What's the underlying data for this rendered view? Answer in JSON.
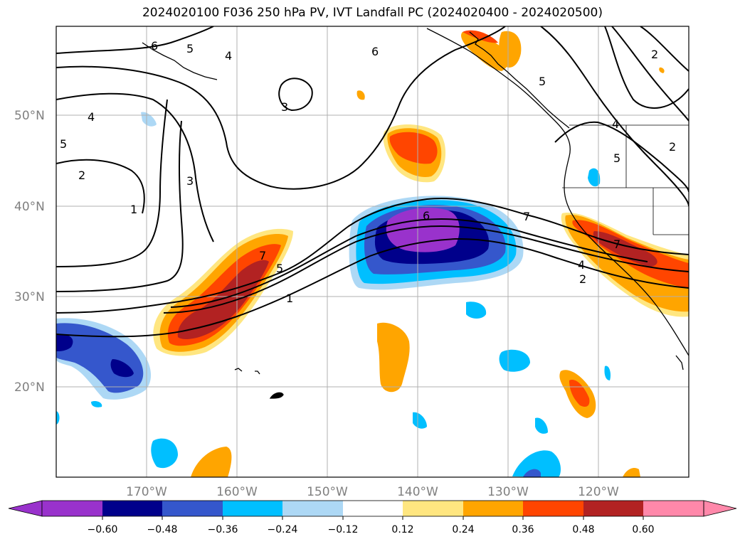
{
  "title": "2024020100 F036 250 hPa PV, IVT Landfall PC (2024020400 - 2024020500)",
  "colors": {
    "bg": "#ffffff",
    "ocean_grid": "#b0b0b0",
    "neg_extreme": "#9932cc",
    "neg_060": "#00008b",
    "neg_048": "#3557cc",
    "neg_036": "#00bfff",
    "neg_024": "#add8f5",
    "neutral": "#ffffff",
    "pos_012": "#ffe680",
    "pos_024": "#ffa500",
    "pos_036": "#ff4500",
    "pos_048": "#b22222",
    "pos_extreme": "#ff88aa"
  },
  "lat_labels": [
    "50°N",
    "40°N",
    "30°N",
    "20°N"
  ],
  "lon_labels": [
    "170°W",
    "160°W",
    "150°W",
    "140°W",
    "130°W",
    "120°W"
  ],
  "colorbar": {
    "ticks": [
      "−0.60",
      "−0.48",
      "−0.36",
      "−0.24",
      "−0.12",
      "0.12",
      "0.24",
      "0.36",
      "0.48",
      "0.60"
    ]
  },
  "contour_labels": [
    "6",
    "5",
    "4",
    "6",
    "3",
    "4",
    "5",
    "2",
    "3",
    "1",
    "6",
    "7",
    "7",
    "5",
    "1",
    "7",
    "4",
    "2",
    "2",
    "5",
    "4",
    "2",
    "5"
  ]
}
